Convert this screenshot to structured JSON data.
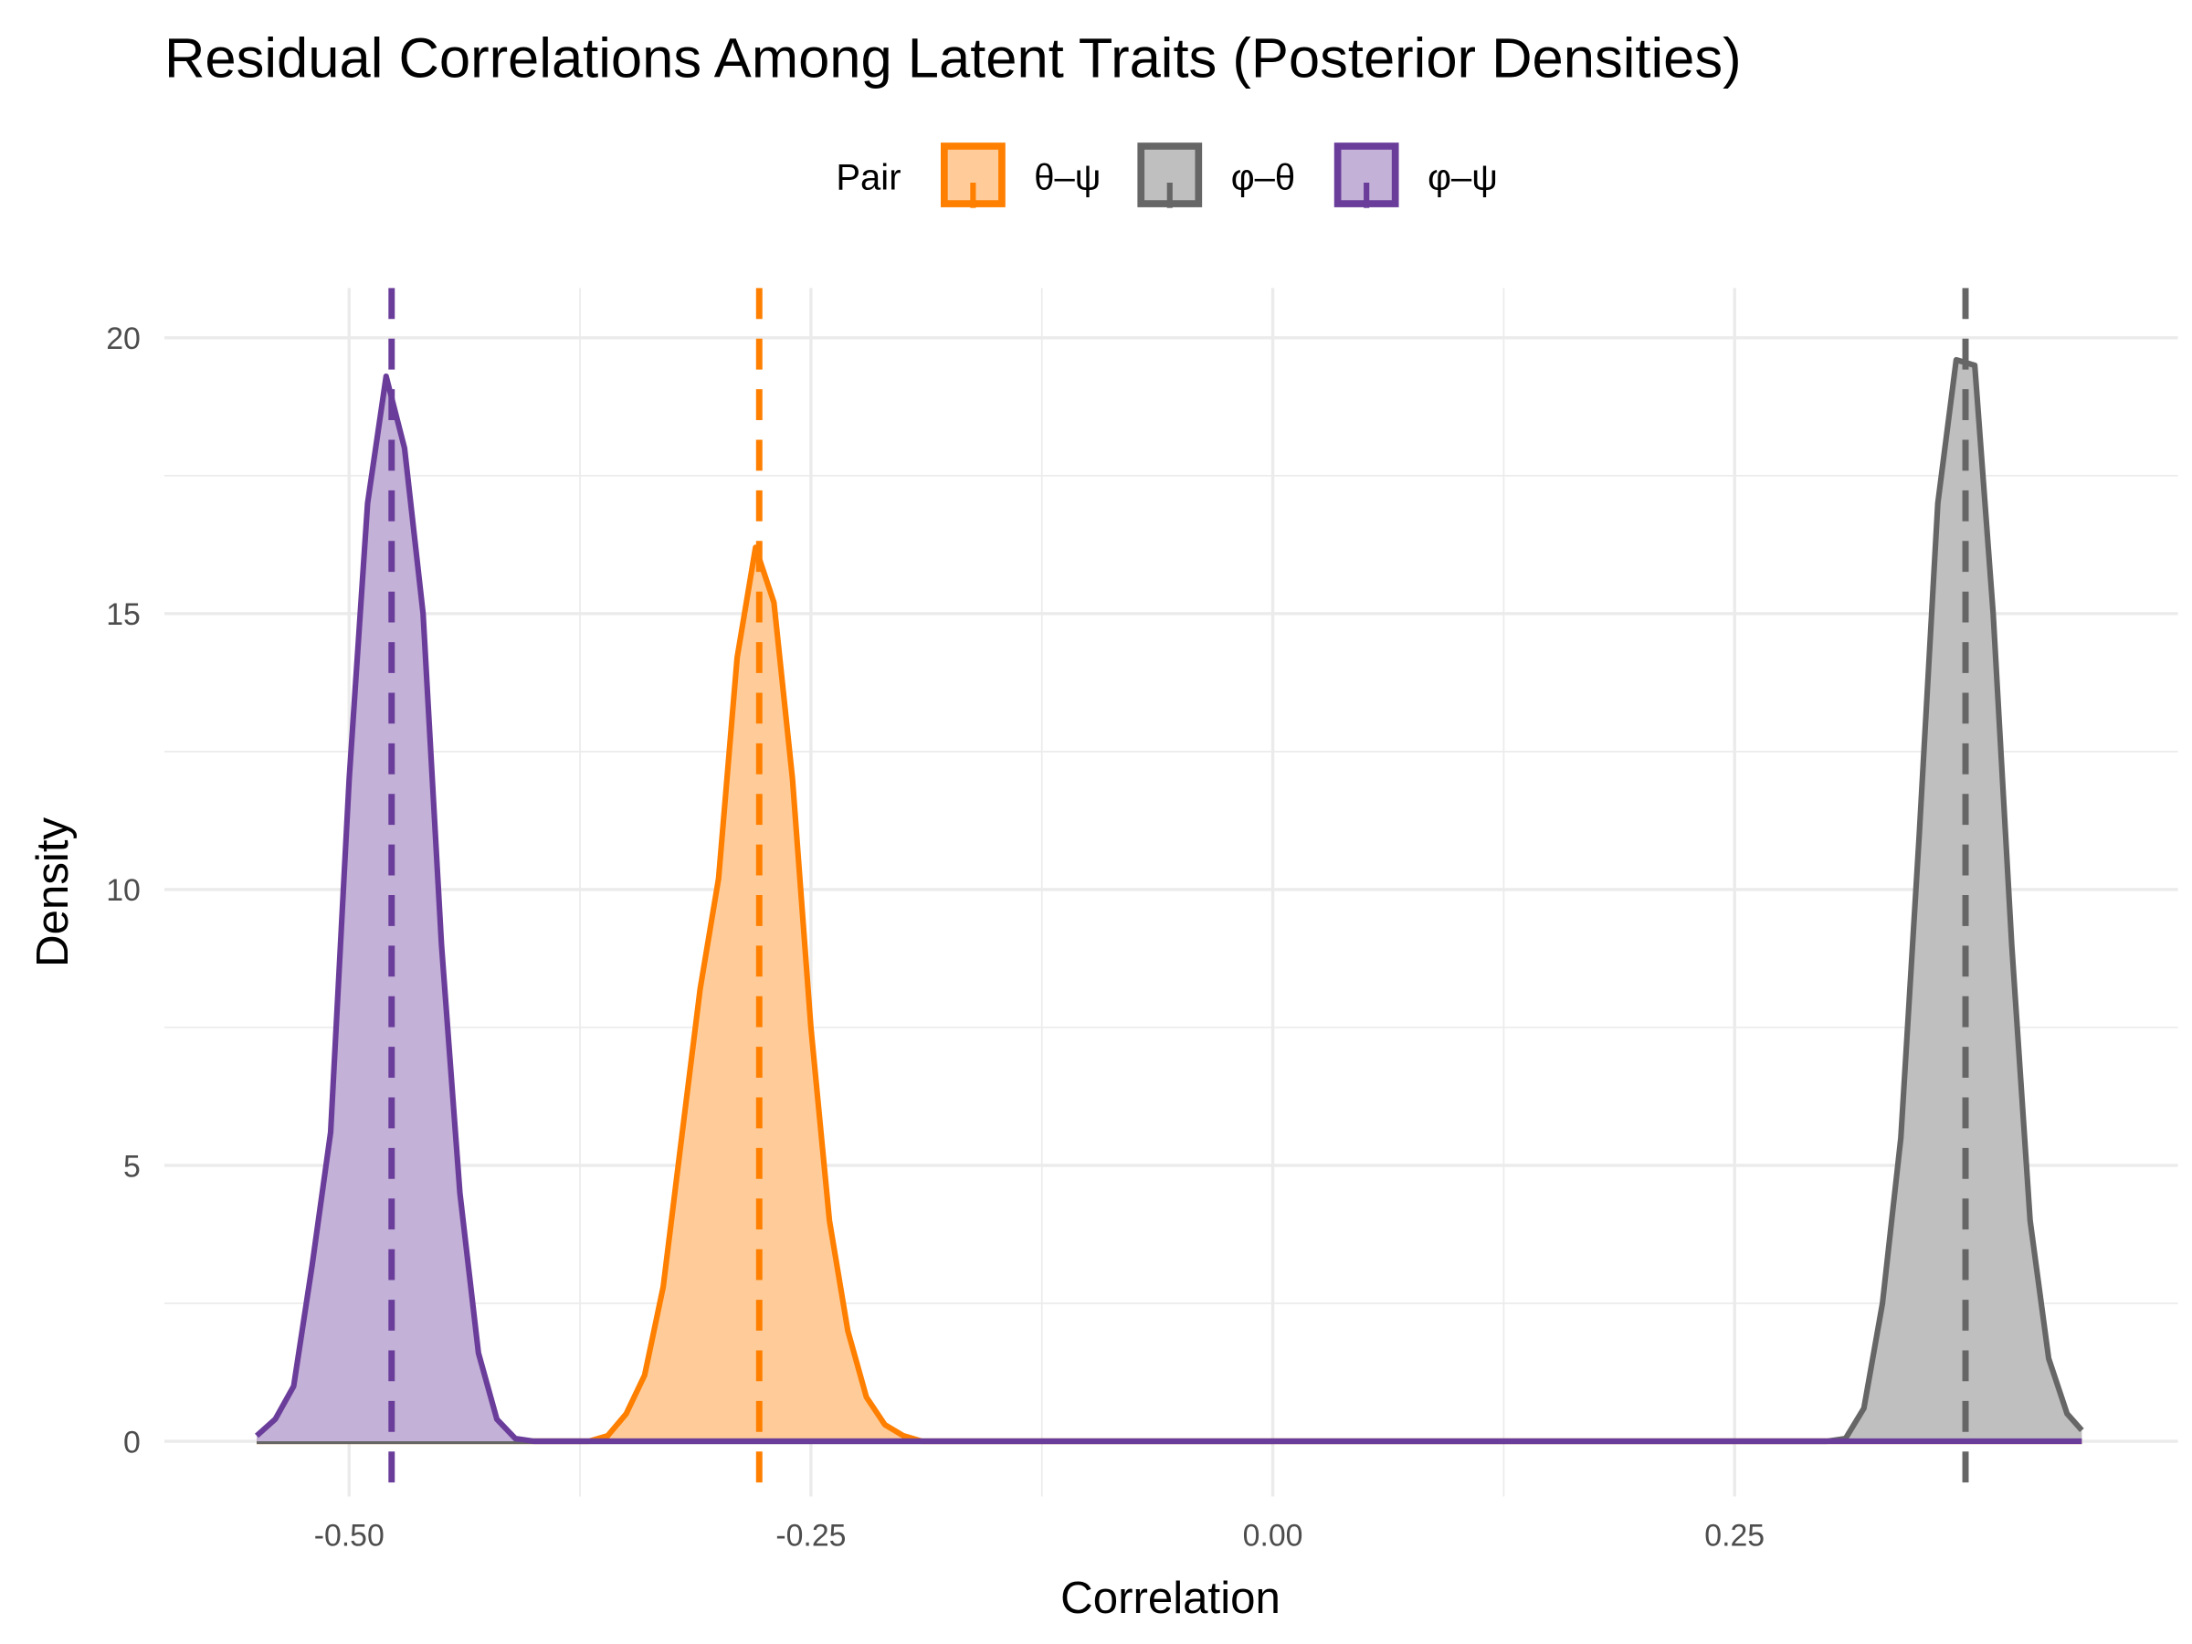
{
  "chart_data": {
    "type": "area",
    "title": "Residual Correlations Among Latent Traits (Posterior Densities)",
    "xlabel": "Correlation",
    "ylabel": "Density",
    "xlim": [
      -0.6,
      0.49
    ],
    "ylim": [
      -1.0,
      20.9
    ],
    "x_ticks": [
      -0.5,
      -0.25,
      0.0,
      0.25
    ],
    "x_tick_labels": [
      "-0.50",
      "-0.25",
      "0.00",
      "0.25"
    ],
    "y_ticks": [
      0,
      5,
      10,
      15,
      20
    ],
    "y_tick_labels": [
      "0",
      "5",
      "10",
      "15",
      "20"
    ],
    "grid": true,
    "legend": {
      "title": "Pair",
      "position": "top"
    },
    "series": [
      {
        "name": "θ–ψ",
        "color": "#FF7F00",
        "fill": "#FFCC99",
        "mean": -0.278,
        "x": [
          -0.55,
          -0.37,
          -0.36,
          -0.35,
          -0.34,
          -0.33,
          -0.32,
          -0.31,
          -0.3,
          -0.29,
          -0.28,
          -0.27,
          -0.26,
          -0.25,
          -0.24,
          -0.23,
          -0.22,
          -0.21,
          -0.2,
          -0.19,
          0.438
        ],
        "y": [
          0,
          0,
          0.1,
          0.5,
          1.2,
          2.8,
          5.5,
          8.2,
          10.2,
          14.2,
          16.2,
          15.2,
          12.0,
          7.5,
          4.0,
          2.0,
          0.8,
          0.3,
          0.1,
          0,
          0
        ]
      },
      {
        "name": "φ–θ",
        "color": "#666666",
        "fill": "#BFBFBF",
        "mean": 0.375,
        "x": [
          -0.55,
          0.3,
          0.31,
          0.32,
          0.33,
          0.34,
          0.35,
          0.36,
          0.37,
          0.38,
          0.39,
          0.4,
          0.41,
          0.42,
          0.43,
          0.438
        ],
        "y": [
          0,
          0,
          0.05,
          0.6,
          2.5,
          5.5,
          11.0,
          17.0,
          19.6,
          19.5,
          15.0,
          9.0,
          4.0,
          1.5,
          0.5,
          0.2
        ]
      },
      {
        "name": "φ–ψ",
        "color": "#6A3D9A",
        "fill": "#C3B1D7",
        "mean": -0.477,
        "x": [
          -0.55,
          -0.54,
          -0.53,
          -0.52,
          -0.51,
          -0.5,
          -0.49,
          -0.48,
          -0.47,
          -0.46,
          -0.45,
          -0.44,
          -0.43,
          -0.42,
          -0.41,
          -0.4,
          0.438
        ],
        "y": [
          0.1,
          0.4,
          1.0,
          3.2,
          5.6,
          12.0,
          17.0,
          19.3,
          18.0,
          15.0,
          9.0,
          4.5,
          1.6,
          0.4,
          0.05,
          0,
          0
        ]
      }
    ]
  }
}
